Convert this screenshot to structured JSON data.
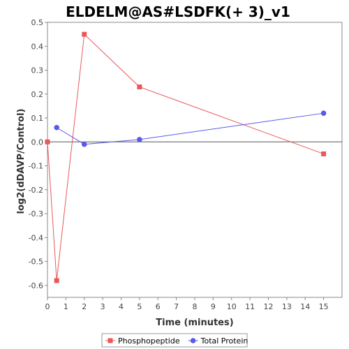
{
  "chart_data": {
    "type": "line",
    "title": "ELDELM@AS#LSDFK(+ 3)_v1",
    "xlabel": "Time (minutes)",
    "ylabel": "log2(dDAVP/Control)",
    "xlim": [
      0,
      16
    ],
    "ylim": [
      -0.65,
      0.5
    ],
    "x_ticks": [
      "0",
      "1",
      "2",
      "3",
      "4",
      "5",
      "6",
      "7",
      "8",
      "9",
      "10",
      "11",
      "12",
      "13",
      "14",
      "15"
    ],
    "y_ticks": [
      "0.5",
      "0.4",
      "0.3",
      "0.2",
      "0.1",
      "0.0",
      "-0.1",
      "-0.2",
      "-0.3",
      "-0.4",
      "-0.5",
      "-0.6"
    ],
    "legend_position": "bottom",
    "grid": false,
    "series": [
      {
        "name": "Phosphopeptide",
        "color": "#e8595a",
        "marker": "square",
        "x": [
          0,
          0.5,
          2,
          5,
          15
        ],
        "y": [
          0.0,
          -0.58,
          0.45,
          0.23,
          -0.05
        ]
      },
      {
        "name": "Total Protein",
        "color": "#5a5ae8",
        "marker": "circle",
        "x": [
          0.5,
          2,
          5,
          15
        ],
        "y": [
          0.06,
          -0.01,
          0.01,
          0.12
        ]
      }
    ]
  }
}
